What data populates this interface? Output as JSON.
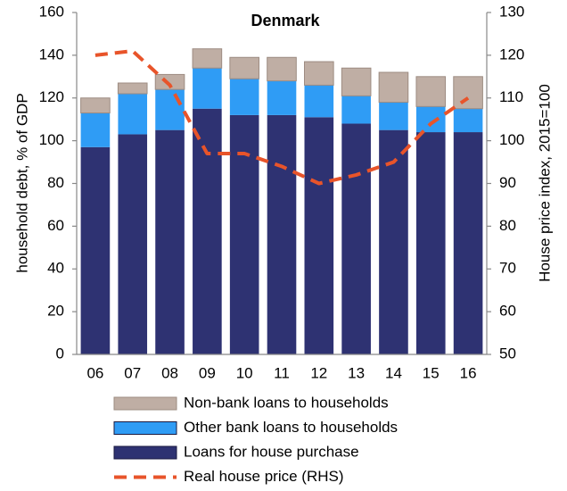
{
  "chart_data": {
    "type": "bar",
    "stacked": true,
    "title": "Denmark",
    "y_label": "household debt, % of GDP",
    "y2_label": "House price index, 2015=100",
    "categories": [
      "06",
      "07",
      "08",
      "09",
      "10",
      "11",
      "12",
      "13",
      "14",
      "15",
      "16"
    ],
    "series": [
      {
        "name": "Loans for house purchase",
        "type": "bar",
        "color": "#2e3272",
        "values": [
          97,
          103,
          105,
          115,
          112,
          112,
          111,
          108,
          105,
          104,
          104
        ]
      },
      {
        "name": "Other bank loans to households",
        "type": "bar",
        "color": "#2f9cf5",
        "values": [
          16,
          19,
          19,
          19,
          17,
          16,
          15,
          13,
          13,
          12,
          11
        ]
      },
      {
        "name": "Non-bank loans to households",
        "type": "bar",
        "color": "#bfaea4",
        "values": [
          7,
          5,
          7,
          9,
          10,
          11,
          11,
          13,
          14,
          14,
          15
        ]
      },
      {
        "name": "Real house price (RHS)",
        "type": "line",
        "axis": "y2",
        "color": "#e8542a",
        "values": [
          120,
          121,
          113,
          97,
          97,
          94,
          90,
          92,
          95,
          104,
          110
        ]
      }
    ],
    "ylim": [
      0,
      160
    ],
    "yticks": [
      0,
      20,
      40,
      60,
      80,
      100,
      120,
      140,
      160
    ],
    "y2lim": [
      50,
      130
    ],
    "y2ticks": [
      50,
      60,
      70,
      80,
      90,
      100,
      110,
      120,
      130
    ],
    "grid": false
  }
}
